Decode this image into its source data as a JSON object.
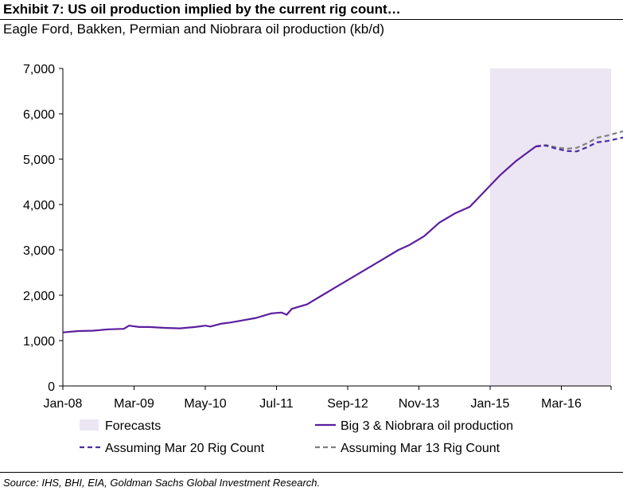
{
  "header": {
    "title": "Exhibit 7: US oil production implied by the current rig count…",
    "subtitle": "Eagle Ford, Bakken, Permian and Niobrara oil production (kb/d)"
  },
  "footer": {
    "source": "Source: IHS, BHI, EIA, Goldman Sachs Global Investment Research."
  },
  "colors": {
    "series_actual": "#5b1f9e",
    "series_mar20": "#4a2ea3",
    "series_mar13": "#808080",
    "forecast_band": "#ece6f4"
  },
  "chart_data": {
    "type": "line",
    "x_unit": "month",
    "x_start": "2008-01",
    "x_end": "2016-12",
    "ylim": [
      0,
      7000
    ],
    "yticks": [
      0,
      1000,
      2000,
      3000,
      4000,
      5000,
      6000,
      7000
    ],
    "ytick_labels": [
      "0",
      "1,000",
      "2,000",
      "3,000",
      "4,000",
      "5,000",
      "6,000",
      "7,000"
    ],
    "xticks": [
      "2008-01",
      "2009-03",
      "2010-05",
      "2011-07",
      "2012-09",
      "2013-11",
      "2015-01",
      "2016-03"
    ],
    "xtick_labels": [
      "Jan-08",
      "Mar-09",
      "May-10",
      "Jul-11",
      "Sep-12",
      "Nov-13",
      "Jan-15",
      "Mar-16"
    ],
    "forecast_region": {
      "label": "Forecasts",
      "start": "2015-01",
      "end": "2016-12"
    },
    "series": [
      {
        "name": "Big 3 & Niobrara oil production",
        "style": "solid",
        "points": [
          [
            "2008-01",
            1180
          ],
          [
            "2008-04",
            1210
          ],
          [
            "2008-07",
            1220
          ],
          [
            "2008-10",
            1250
          ],
          [
            "2009-01",
            1260
          ],
          [
            "2009-02",
            1330
          ],
          [
            "2009-04",
            1300
          ],
          [
            "2009-06",
            1300
          ],
          [
            "2009-09",
            1280
          ],
          [
            "2009-12",
            1270
          ],
          [
            "2010-03",
            1300
          ],
          [
            "2010-05",
            1330
          ],
          [
            "2010-06",
            1310
          ],
          [
            "2010-08",
            1370
          ],
          [
            "2010-10",
            1400
          ],
          [
            "2010-12",
            1440
          ],
          [
            "2011-03",
            1500
          ],
          [
            "2011-06",
            1600
          ],
          [
            "2011-08",
            1620
          ],
          [
            "2011-09",
            1570
          ],
          [
            "2011-10",
            1700
          ],
          [
            "2012-01",
            1800
          ],
          [
            "2012-04",
            2000
          ],
          [
            "2012-07",
            2200
          ],
          [
            "2012-10",
            2400
          ],
          [
            "2013-01",
            2600
          ],
          [
            "2013-04",
            2800
          ],
          [
            "2013-07",
            3000
          ],
          [
            "2013-09",
            3100
          ],
          [
            "2013-12",
            3300
          ],
          [
            "2014-03",
            3600
          ],
          [
            "2014-06",
            3800
          ],
          [
            "2014-09",
            3950
          ],
          [
            "2014-12",
            4300
          ],
          [
            "2015-03",
            4650
          ],
          [
            "2015-06",
            4950
          ],
          [
            "2015-09",
            5200
          ],
          [
            "2015-10",
            5280
          ],
          [
            "2015-11",
            5300
          ]
        ]
      },
      {
        "name": "Assuming Mar 20 Rig Count",
        "style": "dashed",
        "points": [
          [
            "2015-10",
            5280
          ],
          [
            "2015-12",
            5300
          ],
          [
            "2016-02",
            5230
          ],
          [
            "2016-04",
            5180
          ],
          [
            "2016-06",
            5170
          ],
          [
            "2016-08",
            5260
          ],
          [
            "2016-10",
            5370
          ],
          [
            "2016-12",
            5400
          ],
          [
            "2017-02",
            5450
          ],
          [
            "2017-04",
            5500
          ]
        ]
      },
      {
        "name": "Assuming Mar 13 Rig Count",
        "style": "dashed",
        "points": [
          [
            "2015-10",
            5280
          ],
          [
            "2015-12",
            5310
          ],
          [
            "2016-02",
            5260
          ],
          [
            "2016-04",
            5230
          ],
          [
            "2016-06",
            5250
          ],
          [
            "2016-08",
            5350
          ],
          [
            "2016-10",
            5470
          ],
          [
            "2016-12",
            5520
          ],
          [
            "2017-02",
            5580
          ],
          [
            "2017-04",
            5640
          ]
        ]
      }
    ],
    "legend": [
      {
        "label": "Forecasts",
        "kind": "area"
      },
      {
        "label": "Big 3 & Niobrara oil production",
        "kind": "solid"
      },
      {
        "label": "Assuming Mar 20 Rig Count",
        "kind": "dashed"
      },
      {
        "label": "Assuming Mar 13 Rig Count",
        "kind": "dashed-gray"
      }
    ]
  }
}
